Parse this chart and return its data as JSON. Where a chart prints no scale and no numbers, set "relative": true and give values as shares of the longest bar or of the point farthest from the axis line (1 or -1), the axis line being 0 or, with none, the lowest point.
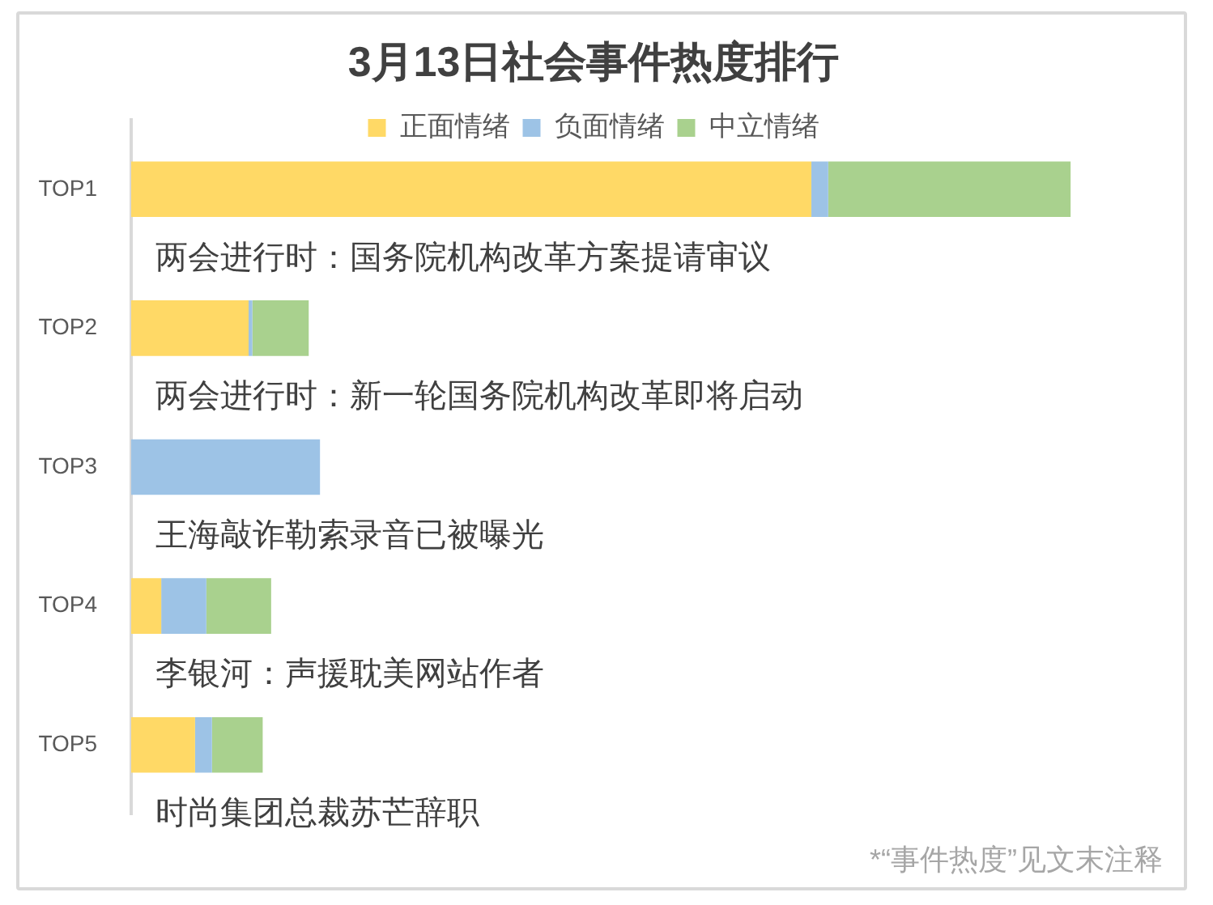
{
  "chart_data": {
    "type": "bar",
    "orientation": "horizontal",
    "stacked": true,
    "relative": true,
    "title": "3月13日社会事件热度排行",
    "categories": [
      "TOP1",
      "TOP2",
      "TOP3",
      "TOP4",
      "TOP5"
    ],
    "series": [
      {
        "name": "正面情绪",
        "color": "#ffd966",
        "values": [
          0.724,
          0.125,
          0,
          0.032,
          0.068
        ]
      },
      {
        "name": "负面情绪",
        "color": "#9dc3e6",
        "values": [
          0.018,
          0.004,
          0.201,
          0.048,
          0.018
        ]
      },
      {
        "name": "中立情绪",
        "color": "#a9d18e",
        "values": [
          0.258,
          0.06,
          0,
          0.069,
          0.054
        ]
      }
    ],
    "legend": "top",
    "annotations": [
      "两会进行时：国务院机构改革方案提请审议",
      "两会进行时：新一轮国务院机构改革即将启动",
      "王海敲诈勒索录音已被曝光",
      "李银河：声援耽美网站作者",
      "时尚集团总裁苏芒辞职",
      "*“事件热度”见文末注释"
    ]
  }
}
